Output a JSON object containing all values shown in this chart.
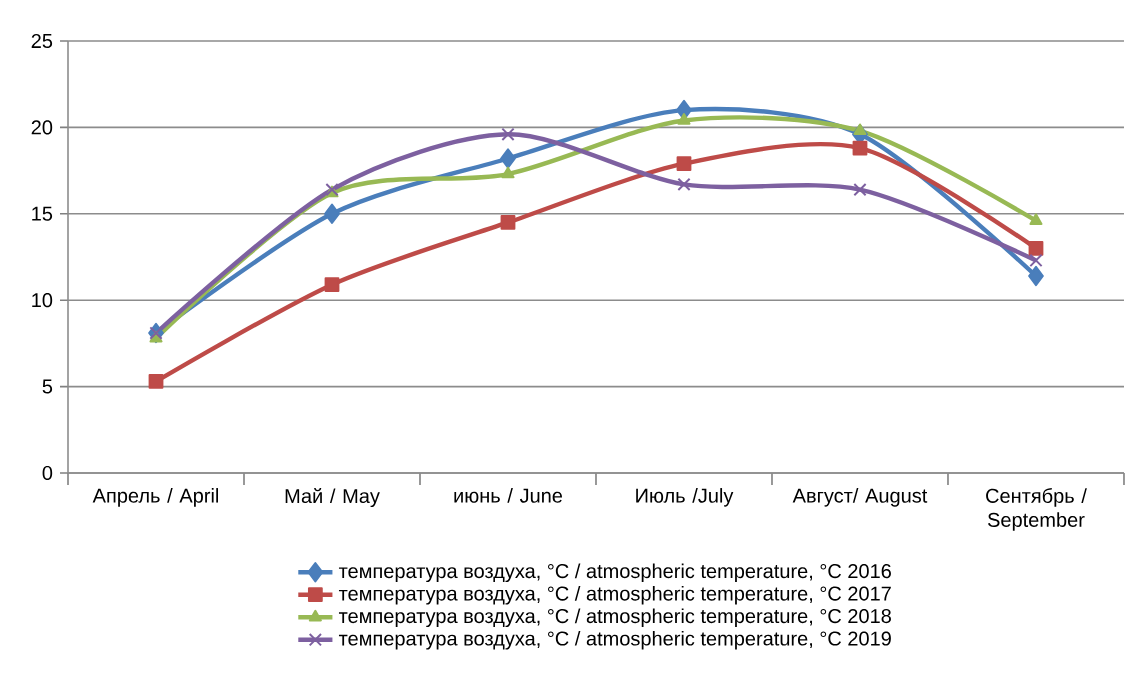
{
  "chart_data": {
    "type": "line",
    "categories": [
      "Апрель / April",
      "Май / May",
      "июнь / June",
      "Июль /July",
      "Август/ August",
      "Сентябрь / September"
    ],
    "series": [
      {
        "name": "температура воздуха, °C /  atmospheric temperature, °C 2016",
        "color": "#4a7ebb",
        "marker": "diamond",
        "values": [
          8.1,
          15.0,
          18.2,
          21.0,
          19.6,
          11.4
        ]
      },
      {
        "name": "температура воздуха, °C /  atmospheric temperature, °C 2017",
        "color": "#be4b48",
        "marker": "square",
        "values": [
          5.3,
          10.9,
          14.5,
          17.9,
          18.8,
          13.0
        ]
      },
      {
        "name": "температура воздуха, °C /  atmospheric temperature, °C 2018",
        "color": "#98b954",
        "marker": "triangle",
        "values": [
          7.8,
          16.2,
          17.3,
          20.4,
          19.8,
          14.6
        ]
      },
      {
        "name": "температура воздуха, °C /  atmospheric temperature, °C 2019",
        "color": "#7d60a0",
        "marker": "cross",
        "values": [
          8.1,
          16.4,
          19.6,
          16.7,
          16.4,
          12.3
        ]
      }
    ],
    "ylim": [
      0,
      25
    ],
    "yticks": [
      0,
      5,
      10,
      15,
      20,
      25
    ],
    "grid": "y",
    "legend": "bottom"
  }
}
